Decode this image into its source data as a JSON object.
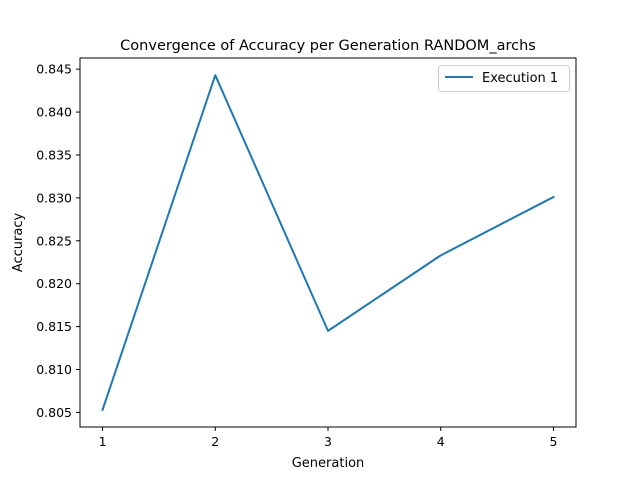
{
  "chart_data": {
    "type": "line",
    "title": "Convergence of Accuracy per Generation RANDOM_archs",
    "xlabel": "Generation",
    "ylabel": "Accuracy",
    "x": [
      1,
      2,
      3,
      4,
      5
    ],
    "series": [
      {
        "name": "Execution 1",
        "color": "#1f77b4",
        "values": [
          0.8053,
          0.8443,
          0.8145,
          0.8233,
          0.8301
        ]
      }
    ],
    "xticks": [
      "1",
      "2",
      "3",
      "4",
      "5"
    ],
    "yticks": [
      "0.805",
      "0.810",
      "0.815",
      "0.820",
      "0.825",
      "0.830",
      "0.835",
      "0.840",
      "0.845"
    ],
    "xlim": [
      0.8,
      5.2
    ],
    "ylim": [
      0.8033,
      0.8463
    ],
    "grid": false,
    "legend_position": "upper-right"
  }
}
